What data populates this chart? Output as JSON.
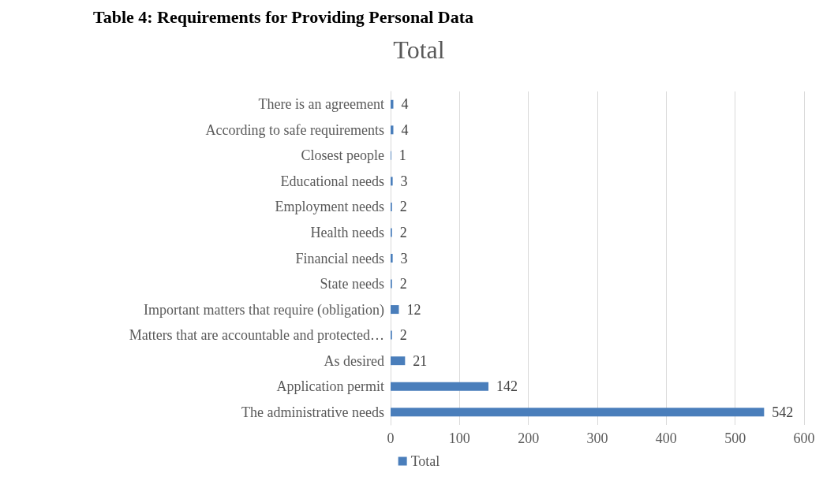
{
  "chart_data": {
    "type": "bar",
    "orientation": "horizontal",
    "title": "Total",
    "annotations": [
      "Table 4: Requirements for Providing Personal Data"
    ],
    "categories": [
      "There is an agreement",
      "According to safe requirements",
      "Closest people",
      "Educational needs",
      "Employment needs",
      "Health needs",
      "Financial needs",
      "State needs",
      "Important matters that require (obligation)",
      "Matters that are accountable and protected…",
      "As desired",
      "Application permit",
      "The administrative needs"
    ],
    "series": [
      {
        "name": "Total",
        "color": "#4a7ebb",
        "values": [
          4,
          4,
          1,
          3,
          2,
          2,
          3,
          2,
          12,
          2,
          21,
          142,
          542
        ]
      }
    ],
    "xlim": [
      0,
      600
    ],
    "xticks": [
      0,
      100,
      200,
      300,
      400,
      500,
      600
    ],
    "grid": "x",
    "legend": "bottom",
    "data_labels": true
  }
}
